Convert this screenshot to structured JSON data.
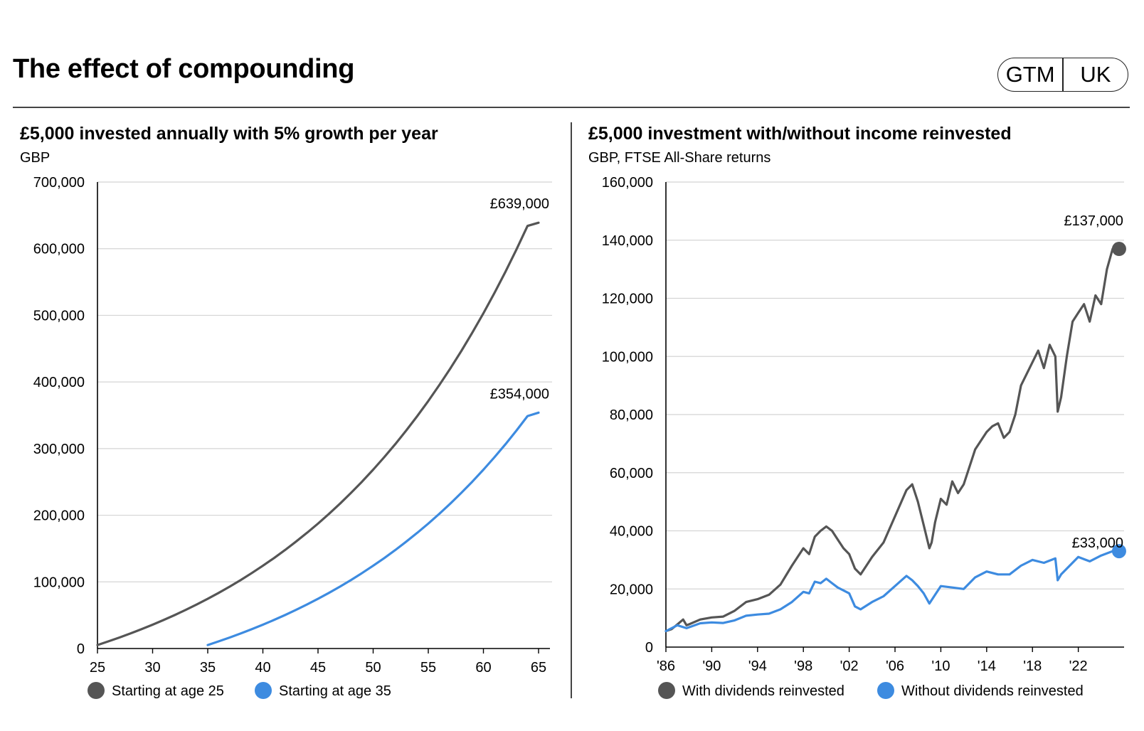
{
  "header": {
    "title": "The effect of compounding",
    "badge": [
      "GTM",
      "UK"
    ]
  },
  "colors": {
    "dark_series": "#555555",
    "blue_series": "#3d8be0",
    "grid": "#d4d4d4",
    "axis": "#000000"
  },
  "chart_data": [
    {
      "type": "line",
      "title": "£5,000 invested annually with 5% growth per year",
      "subtitle": "GBP",
      "xlim": [
        25,
        65
      ],
      "ylim": [
        0,
        700000
      ],
      "x_ticks": [
        "25",
        "30",
        "35",
        "40",
        "45",
        "50",
        "55",
        "60",
        "65"
      ],
      "y_ticks": [
        "0",
        "100,000",
        "200,000",
        "300,000",
        "400,000",
        "500,000",
        "600,000",
        "700,000"
      ],
      "grid": true,
      "legend": "bottom-left",
      "series": [
        {
          "name": "Starting at age 25",
          "color": "#555555",
          "x": [
            25,
            26,
            27,
            28,
            29,
            30,
            31,
            32,
            33,
            34,
            35,
            36,
            37,
            38,
            39,
            40,
            41,
            42,
            43,
            44,
            45,
            46,
            47,
            48,
            49,
            50,
            51,
            52,
            53,
            54,
            55,
            56,
            57,
            58,
            59,
            60,
            61,
            62,
            63,
            64,
            65
          ],
          "y": [
            5250,
            10763,
            16551,
            22628,
            29010,
            35710,
            42746,
            50133,
            57889,
            66034,
            74586,
            83565,
            92993,
            102893,
            113287,
            124202,
            135662,
            147695,
            160330,
            173596,
            187526,
            202153,
            217510,
            233636,
            250568,
            268346,
            287013,
            306614,
            327195,
            348804,
            371494,
            395319,
            420335,
            446602,
            474182,
            503141,
            533548,
            565475,
            598999,
            634199,
            639000
          ],
          "end_label": "£639,000"
        },
        {
          "name": "Starting at age 35",
          "color": "#3d8be0",
          "x": [
            35,
            36,
            37,
            38,
            39,
            40,
            41,
            42,
            43,
            44,
            45,
            46,
            47,
            48,
            49,
            50,
            51,
            52,
            53,
            54,
            55,
            56,
            57,
            58,
            59,
            60,
            61,
            62,
            63,
            64,
            65
          ],
          "y": [
            5250,
            10763,
            16551,
            22628,
            29010,
            35710,
            42746,
            50133,
            57889,
            66034,
            74586,
            83565,
            92993,
            102893,
            113287,
            124202,
            135662,
            147695,
            160330,
            173596,
            187526,
            202153,
            217510,
            233636,
            250568,
            268346,
            287013,
            306614,
            327195,
            348804,
            354000
          ],
          "end_label": "£354,000"
        }
      ]
    },
    {
      "type": "line",
      "title": "£5,000 investment with/without income reinvested",
      "subtitle": "GBP, FTSE All-Share returns",
      "xlim": [
        1986,
        2025.5
      ],
      "ylim": [
        0,
        160000
      ],
      "x_ticks": [
        "'86",
        "'90",
        "'94",
        "'98",
        "'02",
        "'06",
        "'10",
        "'14",
        "'18",
        "'22"
      ],
      "x_tick_values": [
        1986,
        1990,
        1994,
        1998,
        2002,
        2006,
        2010,
        2014,
        2018,
        2022
      ],
      "y_ticks": [
        "0",
        "20,000",
        "40,000",
        "60,000",
        "80,000",
        "100,000",
        "120,000",
        "140,000",
        "160,000"
      ],
      "grid": true,
      "legend": "bottom-left",
      "series": [
        {
          "name": "With dividends reinvested",
          "color": "#555555",
          "x": [
            1986,
            1986.5,
            1987,
            1987.5,
            1987.8,
            1988,
            1989,
            1990,
            1991,
            1992,
            1993,
            1994,
            1995,
            1996,
            1997,
            1998,
            1998.5,
            1999,
            1999.5,
            2000,
            2000.5,
            2001,
            2001.5,
            2002,
            2002.5,
            2003,
            2003.5,
            2004,
            2005,
            2006,
            2007,
            2007.5,
            2008,
            2008.5,
            2009,
            2009.2,
            2009.5,
            2010,
            2010.5,
            2011,
            2011.5,
            2012,
            2013,
            2014,
            2014.5,
            2015,
            2015.5,
            2016,
            2016.5,
            2017,
            2018,
            2018.5,
            2019,
            2019.5,
            2020,
            2020.2,
            2020.5,
            2021,
            2021.5,
            2022,
            2022.5,
            2023,
            2023.5,
            2024,
            2024.5,
            2025
          ],
          "y": [
            5500,
            6200,
            7800,
            9500,
            7500,
            7800,
            9500,
            10200,
            10500,
            12500,
            15500,
            16500,
            18000,
            21500,
            28000,
            34000,
            32000,
            38000,
            40000,
            41500,
            40000,
            37000,
            34000,
            32000,
            27000,
            25000,
            28000,
            31000,
            36000,
            45000,
            54000,
            56000,
            50000,
            42000,
            34000,
            36000,
            43000,
            51000,
            49000,
            57000,
            53000,
            56000,
            68000,
            74000,
            76000,
            77000,
            72000,
            74000,
            80000,
            90000,
            98000,
            102000,
            96000,
            104000,
            100000,
            81000,
            86000,
            100000,
            112000,
            115000,
            118000,
            112000,
            121000,
            118000,
            130000,
            137000
          ],
          "end_label": "£137,000"
        },
        {
          "name": "Without dividends reinvested",
          "color": "#3d8be0",
          "x": [
            1986,
            1987,
            1987.8,
            1988,
            1989,
            1990,
            1991,
            1992,
            1993,
            1994,
            1995,
            1996,
            1997,
            1998,
            1998.5,
            1999,
            1999.5,
            2000,
            2000.5,
            2001,
            2001.5,
            2002,
            2002.5,
            2003,
            2004,
            2005,
            2006,
            2007,
            2007.5,
            2008,
            2008.5,
            2009,
            2009.5,
            2010,
            2011,
            2012,
            2013,
            2014,
            2015,
            2016,
            2017,
            2018,
            2019,
            2020,
            2020.2,
            2020.5,
            2021,
            2022,
            2023,
            2024,
            2025
          ],
          "y": [
            5500,
            7500,
            6500,
            6800,
            8200,
            8500,
            8300,
            9200,
            10800,
            11200,
            11500,
            13000,
            15500,
            19000,
            18500,
            22500,
            22000,
            23500,
            22000,
            20500,
            19500,
            18500,
            14000,
            13000,
            15500,
            17500,
            21000,
            24500,
            23000,
            21000,
            18500,
            15000,
            18000,
            21000,
            20500,
            20000,
            24000,
            26000,
            25000,
            25000,
            28000,
            30000,
            29000,
            30500,
            23000,
            25000,
            27000,
            31000,
            29500,
            31500,
            33000
          ],
          "end_label": "£33,000"
        }
      ]
    }
  ]
}
